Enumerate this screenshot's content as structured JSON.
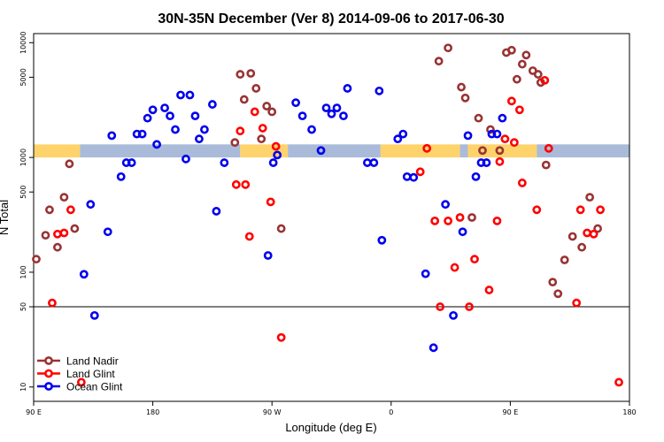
{
  "chart_data": {
    "type": "scatter",
    "title": "30N-35N December (Ver 8)   2014-09-06 to 2017-06-30",
    "xlabel": "Longitude (deg E)",
    "ylabel": "N Total",
    "x_axis": {
      "min": 90,
      "max": 540,
      "ticks": [
        90,
        180,
        270,
        360,
        450,
        540
      ],
      "tick_labels": [
        "90 E",
        "180",
        "90 W",
        "0",
        "90 E",
        "180"
      ]
    },
    "y_axis": {
      "scale": "log",
      "min": 7.5,
      "max": 12000,
      "ticks": [
        10,
        50,
        100,
        500,
        1000,
        5000,
        10000
      ],
      "tick_labels": [
        "10",
        "50",
        "100",
        "500",
        "1000",
        "5000",
        "10000"
      ]
    },
    "reference_line": 50,
    "landmask": {
      "y_low": 1000,
      "y_high": 1300,
      "land_color": "#FFD36B",
      "ocean_color": "#A9BBD9",
      "segments": [
        {
          "kind": "land",
          "x0": 90,
          "x1": 125
        },
        {
          "kind": "ocean",
          "x0": 125,
          "x1": 246
        },
        {
          "kind": "land",
          "x0": 246,
          "x1": 282
        },
        {
          "kind": "ocean",
          "x0": 282,
          "x1": 352
        },
        {
          "kind": "land",
          "x0": 352,
          "x1": 412
        },
        {
          "kind": "ocean",
          "x0": 412,
          "x1": 418
        },
        {
          "kind": "land",
          "x0": 418,
          "x1": 470
        },
        {
          "kind": "ocean",
          "x0": 470,
          "x1": 540
        }
      ]
    },
    "legend": {
      "position": "bottom-left"
    },
    "series": [
      {
        "name": "Land Nadir",
        "color": "#993333",
        "points": [
          [
            92,
            130
          ],
          [
            99,
            210
          ],
          [
            102,
            350
          ],
          [
            108,
            165
          ],
          [
            113,
            450
          ],
          [
            117,
            880
          ],
          [
            121,
            240
          ],
          [
            242,
            1350
          ],
          [
            246,
            5300
          ],
          [
            249,
            3200
          ],
          [
            254,
            5400
          ],
          [
            258,
            4000
          ],
          [
            262,
            1450
          ],
          [
            266,
            2800
          ],
          [
            270,
            2500
          ],
          [
            277,
            240
          ],
          [
            396,
            6900
          ],
          [
            403,
            9000
          ],
          [
            413,
            4100
          ],
          [
            416,
            3300
          ],
          [
            421,
            300
          ],
          [
            426,
            2200
          ],
          [
            429,
            1150
          ],
          [
            435,
            1750
          ],
          [
            442,
            1150
          ],
          [
            447,
            8200
          ],
          [
            451,
            8600
          ],
          [
            455,
            4800
          ],
          [
            459,
            6500
          ],
          [
            462,
            7800
          ],
          [
            467,
            5700
          ],
          [
            471,
            5300
          ],
          [
            473,
            4500
          ],
          [
            477,
            860
          ],
          [
            482,
            82
          ],
          [
            486,
            65
          ],
          [
            491,
            128
          ],
          [
            497,
            205
          ],
          [
            504,
            165
          ],
          [
            510,
            450
          ],
          [
            516,
            240
          ]
        ]
      },
      {
        "name": "Land Glint",
        "color": "#FF0000",
        "points": [
          [
            104,
            54
          ],
          [
            108,
            215
          ],
          [
            113,
            220
          ],
          [
            118,
            350
          ],
          [
            126,
            11
          ],
          [
            243,
            580
          ],
          [
            246,
            1700
          ],
          [
            250,
            580
          ],
          [
            253,
            205
          ],
          [
            257,
            2500
          ],
          [
            263,
            1800
          ],
          [
            269,
            410
          ],
          [
            273,
            1250
          ],
          [
            277,
            27
          ],
          [
            382,
            750
          ],
          [
            387,
            1200
          ],
          [
            393,
            280
          ],
          [
            397,
            50
          ],
          [
            403,
            280
          ],
          [
            408,
            110
          ],
          [
            412,
            300
          ],
          [
            419,
            50
          ],
          [
            423,
            130
          ],
          [
            434,
            70
          ],
          [
            440,
            280
          ],
          [
            442,
            920
          ],
          [
            446,
            1450
          ],
          [
            451,
            3100
          ],
          [
            453,
            1350
          ],
          [
            457,
            2600
          ],
          [
            459,
            600
          ],
          [
            470,
            350
          ],
          [
            476,
            4700
          ],
          [
            479,
            1200
          ],
          [
            500,
            54
          ],
          [
            503,
            350
          ],
          [
            508,
            220
          ],
          [
            513,
            215
          ],
          [
            518,
            350
          ],
          [
            532,
            11
          ]
        ]
      },
      {
        "name": "Ocean Glint",
        "color": "#0000EE",
        "points": [
          [
            128,
            96
          ],
          [
            133,
            390
          ],
          [
            136,
            42
          ],
          [
            146,
            225
          ],
          [
            149,
            1550
          ],
          [
            156,
            680
          ],
          [
            160,
            900
          ],
          [
            164,
            900
          ],
          [
            168,
            1600
          ],
          [
            172,
            1600
          ],
          [
            176,
            2200
          ],
          [
            180,
            2600
          ],
          [
            183,
            1300
          ],
          [
            189,
            2700
          ],
          [
            193,
            2300
          ],
          [
            197,
            1750
          ],
          [
            201,
            3500
          ],
          [
            205,
            970
          ],
          [
            208,
            3500
          ],
          [
            212,
            2300
          ],
          [
            215,
            1450
          ],
          [
            219,
            1750
          ],
          [
            225,
            2900
          ],
          [
            228,
            340
          ],
          [
            234,
            900
          ],
          [
            267,
            140
          ],
          [
            271,
            900
          ],
          [
            274,
            1050
          ],
          [
            288,
            3000
          ],
          [
            293,
            2300
          ],
          [
            300,
            1750
          ],
          [
            307,
            1150
          ],
          [
            311,
            2700
          ],
          [
            315,
            2400
          ],
          [
            319,
            2700
          ],
          [
            324,
            2300
          ],
          [
            327,
            4000
          ],
          [
            342,
            900
          ],
          [
            347,
            900
          ],
          [
            351,
            3800
          ],
          [
            353,
            190
          ],
          [
            365,
            1450
          ],
          [
            369,
            1600
          ],
          [
            372,
            680
          ],
          [
            377,
            670
          ],
          [
            386,
            97
          ],
          [
            392,
            22
          ],
          [
            401,
            390
          ],
          [
            407,
            42
          ],
          [
            414,
            225
          ],
          [
            418,
            1550
          ],
          [
            424,
            680
          ],
          [
            428,
            900
          ],
          [
            432,
            900
          ],
          [
            436,
            1600
          ],
          [
            440,
            1600
          ],
          [
            444,
            2200
          ]
        ]
      }
    ]
  }
}
